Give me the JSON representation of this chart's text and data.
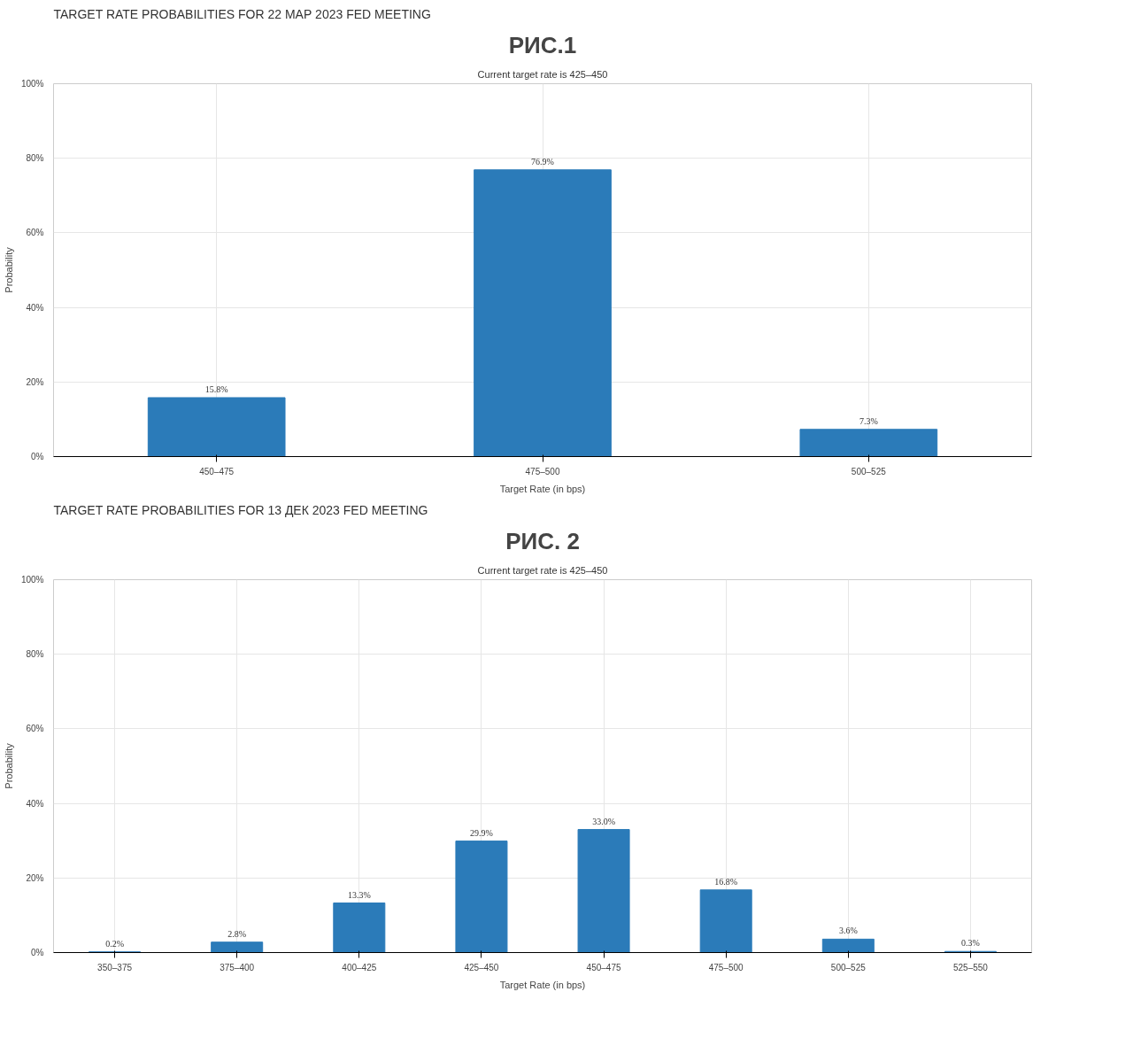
{
  "chart_data": [
    {
      "type": "bar",
      "title": "РИС.1",
      "subtitle": "TARGET RATE PROBABILITIES FOR 22 МАР 2023 FED MEETING",
      "annotations": [
        "Current target rate is 425–450"
      ],
      "xlabel": "Target Rate (in bps)",
      "ylabel": "Probability",
      "categories": [
        "450–475",
        "475–500",
        "500–525"
      ],
      "series": [
        {
          "color": "#2b7bb9",
          "values": [
            15.8,
            76.9,
            7.3
          ],
          "value_labels": [
            "15.8%",
            "76.9%",
            "7.3%"
          ]
        }
      ],
      "ylim": [
        0,
        100
      ],
      "yticks": [
        {
          "value": 0,
          "label": "0%"
        },
        {
          "value": 20,
          "label": "20%"
        },
        {
          "value": 40,
          "label": "40%"
        },
        {
          "value": 60,
          "label": "60%"
        },
        {
          "value": 80,
          "label": "80%"
        },
        {
          "value": 100,
          "label": "100%"
        }
      ],
      "grid": true
    },
    {
      "type": "bar",
      "title": "РИС. 2",
      "subtitle": "TARGET RATE PROBABILITIES FOR 13 ДЕК 2023 FED MEETING",
      "annotations": [
        "Current target rate is 425–450"
      ],
      "xlabel": "Target Rate (in bps)",
      "ylabel": "Probability",
      "categories": [
        "350–375",
        "375–400",
        "400–425",
        "425–450",
        "450–475",
        "475–500",
        "500–525",
        "525–550"
      ],
      "series": [
        {
          "color": "#2b7bb9",
          "values": [
            0.2,
            2.8,
            13.3,
            29.9,
            33.0,
            16.8,
            3.6,
            0.3
          ],
          "value_labels": [
            "0.2%",
            "2.8%",
            "13.3%",
            "29.9%",
            "33.0%",
            "16.8%",
            "3.6%",
            "0.3%"
          ]
        }
      ],
      "ylim": [
        0,
        100
      ],
      "yticks": [
        {
          "value": 0,
          "label": "0%"
        },
        {
          "value": 20,
          "label": "20%"
        },
        {
          "value": 40,
          "label": "40%"
        },
        {
          "value": 60,
          "label": "60%"
        },
        {
          "value": 80,
          "label": "80%"
        },
        {
          "value": 100,
          "label": "100%"
        }
      ],
      "grid": true
    }
  ]
}
